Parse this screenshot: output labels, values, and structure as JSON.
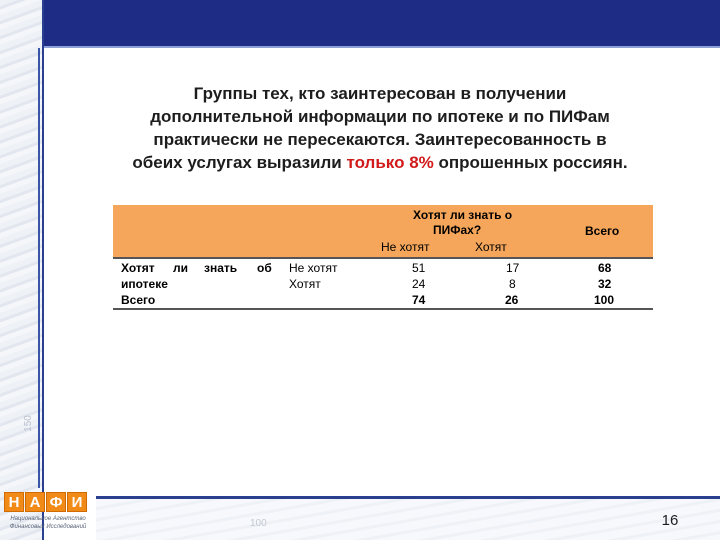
{
  "heading": {
    "line1": "Группы тех, кто заинтересован в получении",
    "line2": "дополнительной информации по ипотеке и по ПИФам",
    "line3": "практически не пересекаются. Заинтересованность в",
    "line4_before": "обеих услугах выразили ",
    "line4_highlight": "только 8%",
    "line4_after": " опрошенных россиян.",
    "highlight_color": "#d11a1a"
  },
  "table": {
    "col_group_header_1": "Хотят ли знать о",
    "col_group_header_2": "ПИФах?",
    "col_no": "Не хотят",
    "col_yes": "Хотят",
    "col_total": "Всего",
    "row_group_label_1": "Хотят",
    "row_group_label_2": "ли",
    "row_group_label_3": "знать",
    "row_group_label_4": "об",
    "row_group_label_5": "ипотеке",
    "rows": [
      {
        "label": "Не хотят",
        "no": "51",
        "yes": "17",
        "total": "68"
      },
      {
        "label": "Хотят",
        "no": "24",
        "yes": "8",
        "total": "32"
      }
    ],
    "total_row": {
      "label": "Всего",
      "no": "74",
      "yes": "26",
      "total": "100"
    },
    "header_color": "#f5a65a"
  },
  "logo": {
    "letters": [
      "Н",
      "А",
      "Ф",
      "И"
    ],
    "line1": "Национальное Агентство",
    "line2": "Финансовых Исследований"
  },
  "decor": {
    "strip_number": "150",
    "bottom_number": "100"
  },
  "page_number": "16",
  "brand_color": "#1f2c86"
}
